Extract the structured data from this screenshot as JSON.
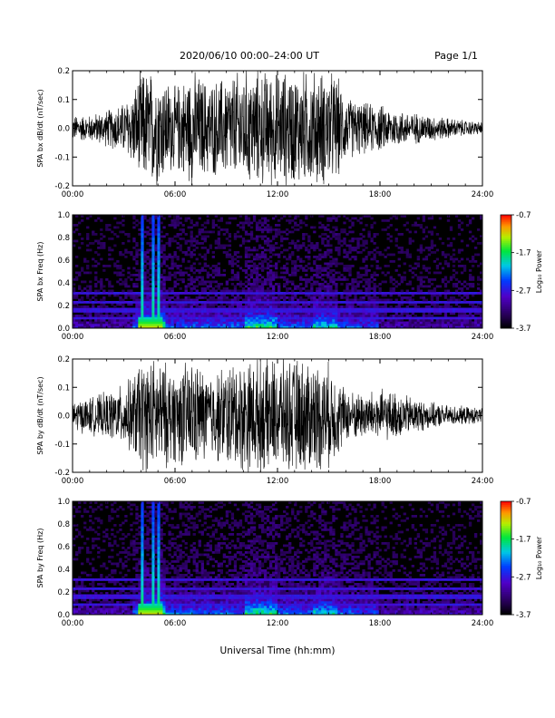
{
  "header": {
    "title": "2020/06/10  00:00–24:00 UT",
    "page": "Page 1/1"
  },
  "xlabel": "Universal Time (hh:mm)",
  "chart_data": [
    {
      "type": "line",
      "ylabel": "SPA bx dB/dt (nT/sec)",
      "xlim": [
        0,
        24
      ],
      "ylim": [
        -0.2,
        0.2
      ],
      "xticks": [
        "00:00",
        "06:00",
        "12:00",
        "18:00",
        "24:00"
      ],
      "yticks": [
        "-0.2",
        "-0.1",
        "0.0",
        "0.1",
        "0.2"
      ],
      "envelope_x": [
        0,
        1,
        2,
        3,
        3.5,
        4,
        5,
        6,
        7,
        8,
        9,
        10,
        11,
        12,
        13,
        14,
        15,
        15.5,
        16,
        17,
        18,
        19,
        20,
        21,
        22,
        23,
        24
      ],
      "envelope_amp": [
        0.05,
        0.05,
        0.07,
        0.1,
        0.14,
        0.22,
        0.22,
        0.16,
        0.22,
        0.18,
        0.2,
        0.22,
        0.22,
        0.22,
        0.22,
        0.22,
        0.22,
        0.2,
        0.12,
        0.1,
        0.09,
        0.07,
        0.06,
        0.05,
        0.04,
        0.03,
        0.025
      ]
    },
    {
      "type": "heatmap",
      "ylabel": "SPA bx Freq (Hz)",
      "xlim": [
        0,
        24
      ],
      "ylim": [
        0,
        1.0
      ],
      "xticks": [
        "00:00",
        "06:00",
        "12:00",
        "18:00",
        "24:00"
      ],
      "yticks": [
        "0.0",
        "0.2",
        "0.4",
        "0.6",
        "0.8",
        "1.0"
      ],
      "colorbar": {
        "label": "Log₁₀ Power",
        "range": [
          -3.7,
          -0.7
        ],
        "ticks": [
          "-0.7",
          "-1.7",
          "-2.7",
          "-3.7"
        ]
      },
      "bright_times": [
        4.1,
        4.7,
        5.0
      ],
      "harmonic_lines_hz": [
        0.31,
        0.23,
        0.16,
        0.09
      ]
    },
    {
      "type": "line",
      "ylabel": "SPA by dB/dt (nT/sec)",
      "xlim": [
        0,
        24
      ],
      "ylim": [
        -0.2,
        0.2
      ],
      "xticks": [
        "00:00",
        "06:00",
        "12:00",
        "18:00",
        "24:00"
      ],
      "yticks": [
        "-0.2",
        "-0.1",
        "0.0",
        "0.1",
        "0.2"
      ],
      "envelope_x": [
        0,
        1,
        2,
        3,
        3.5,
        4,
        5,
        6,
        7,
        8,
        9,
        10,
        11,
        12,
        13,
        14,
        15,
        15.5,
        16,
        17,
        18,
        19,
        20,
        21,
        22,
        23,
        24
      ],
      "envelope_amp": [
        0.06,
        0.07,
        0.09,
        0.12,
        0.15,
        0.22,
        0.22,
        0.18,
        0.22,
        0.16,
        0.2,
        0.22,
        0.22,
        0.22,
        0.22,
        0.22,
        0.2,
        0.16,
        0.1,
        0.09,
        0.1,
        0.09,
        0.07,
        0.05,
        0.04,
        0.035,
        0.03
      ]
    },
    {
      "type": "heatmap",
      "ylabel": "SPA by Freq (Hz)",
      "xlim": [
        0,
        24
      ],
      "ylim": [
        0,
        1.0
      ],
      "xticks": [
        "00:00",
        "06:00",
        "12:00",
        "18:00",
        "24:00"
      ],
      "yticks": [
        "0.0",
        "0.2",
        "0.4",
        "0.6",
        "0.8",
        "1.0"
      ],
      "colorbar": {
        "label": "Log₁₀ Power",
        "range": [
          -3.7,
          -0.7
        ],
        "ticks": [
          "-0.7",
          "-1.7",
          "-2.7",
          "-3.7"
        ]
      },
      "bright_times": [
        4.1,
        4.7,
        5.0
      ],
      "harmonic_lines_hz": [
        0.31,
        0.23,
        0.16,
        0.09
      ]
    }
  ]
}
